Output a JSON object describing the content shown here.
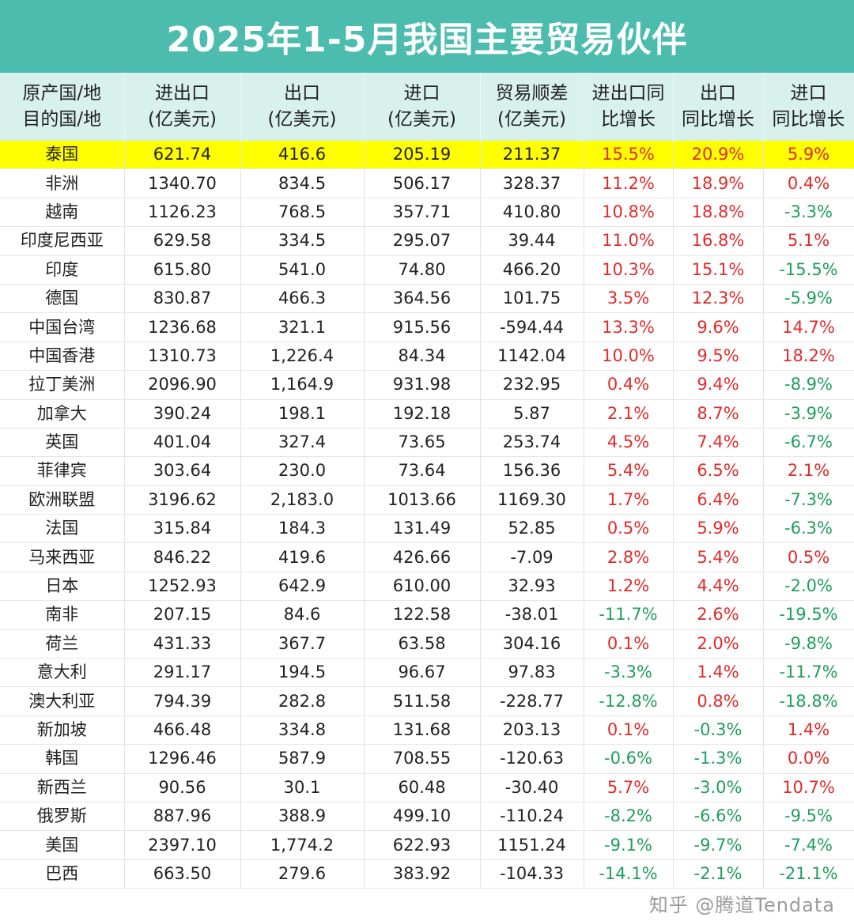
{
  "title": "2025年1-5月我国主要贸易伙伴",
  "headers": [
    [
      "原产国/地",
      "目的国/地"
    ],
    [
      "进出口",
      "(亿美元)"
    ],
    [
      "出口",
      "(亿美元)"
    ],
    [
      "进口",
      "(亿美元)"
    ],
    [
      "贸易顺差",
      "(亿美元)"
    ],
    [
      "进出口同",
      "比增长"
    ],
    [
      "出口",
      "同比增长"
    ],
    [
      "进口",
      "同比增长"
    ]
  ],
  "highlight_color": "#ffff00",
  "positive_color": "#e02a2a",
  "negative_color": "#1f9e5e",
  "rows": [
    [
      "泰国",
      "621.74",
      "416.6",
      "205.19",
      "211.37",
      "15.5%",
      "20.9%",
      "5.9%"
    ],
    [
      "非洲",
      "1340.70",
      "834.5",
      "506.17",
      "328.37",
      "11.2%",
      "18.9%",
      "0.4%"
    ],
    [
      "越南",
      "1126.23",
      "768.5",
      "357.71",
      "410.80",
      "10.8%",
      "18.8%",
      "-3.3%"
    ],
    [
      "印度尼西亚",
      "629.58",
      "334.5",
      "295.07",
      "39.44",
      "11.0%",
      "16.8%",
      "5.1%"
    ],
    [
      "印度",
      "615.80",
      "541.0",
      "74.80",
      "466.20",
      "10.3%",
      "15.1%",
      "-15.5%"
    ],
    [
      "德国",
      "830.87",
      "466.3",
      "364.56",
      "101.75",
      "3.5%",
      "12.3%",
      "-5.9%"
    ],
    [
      "中国台湾",
      "1236.68",
      "321.1",
      "915.56",
      "-594.44",
      "13.3%",
      "9.6%",
      "14.7%"
    ],
    [
      "中国香港",
      "1310.73",
      "1,226.4",
      "84.34",
      "1142.04",
      "10.0%",
      "9.5%",
      "18.2%"
    ],
    [
      "拉丁美洲",
      "2096.90",
      "1,164.9",
      "931.98",
      "232.95",
      "0.4%",
      "9.4%",
      "-8.9%"
    ],
    [
      "加拿大",
      "390.24",
      "198.1",
      "192.18",
      "5.87",
      "2.1%",
      "8.7%",
      "-3.9%"
    ],
    [
      "英国",
      "401.04",
      "327.4",
      "73.65",
      "253.74",
      "4.5%",
      "7.4%",
      "-6.7%"
    ],
    [
      "菲律宾",
      "303.64",
      "230.0",
      "73.64",
      "156.36",
      "5.4%",
      "6.5%",
      "2.1%"
    ],
    [
      "欧洲联盟",
      "3196.62",
      "2,183.0",
      "1013.66",
      "1169.30",
      "1.7%",
      "6.4%",
      "-7.3%"
    ],
    [
      "法国",
      "315.84",
      "184.3",
      "131.49",
      "52.85",
      "0.5%",
      "5.9%",
      "-6.3%"
    ],
    [
      "马来西亚",
      "846.22",
      "419.6",
      "426.66",
      "-7.09",
      "2.8%",
      "5.4%",
      "0.5%"
    ],
    [
      "日本",
      "1252.93",
      "642.9",
      "610.00",
      "32.93",
      "1.2%",
      "4.4%",
      "-2.0%"
    ],
    [
      "南非",
      "207.15",
      "84.6",
      "122.58",
      "-38.01",
      "-11.7%",
      "2.6%",
      "-19.5%"
    ],
    [
      "荷兰",
      "431.33",
      "367.7",
      "63.58",
      "304.16",
      "0.1%",
      "2.0%",
      "-9.8%"
    ],
    [
      "意大利",
      "291.17",
      "194.5",
      "96.67",
      "97.83",
      "-3.3%",
      "1.4%",
      "-11.7%"
    ],
    [
      "澳大利亚",
      "794.39",
      "282.8",
      "511.58",
      "-228.77",
      "-12.8%",
      "0.8%",
      "-18.8%"
    ],
    [
      "新加坡",
      "466.48",
      "334.8",
      "131.68",
      "203.13",
      "0.1%",
      "-0.3%",
      "1.4%"
    ],
    [
      "韩国",
      "1296.46",
      "587.9",
      "708.55",
      "-120.63",
      "-0.6%",
      "-1.3%",
      "0.0%"
    ],
    [
      "新西兰",
      "90.56",
      "30.1",
      "60.48",
      "-30.40",
      "5.7%",
      "-3.0%",
      "10.7%"
    ],
    [
      "俄罗斯",
      "887.96",
      "388.9",
      "499.10",
      "-110.24",
      "-8.2%",
      "-6.6%",
      "-9.5%"
    ],
    [
      "美国",
      "2397.10",
      "1,774.2",
      "622.93",
      "1151.24",
      "-9.1%",
      "-9.7%",
      "-7.4%"
    ],
    [
      "巴西",
      "663.50",
      "279.6",
      "383.92",
      "-104.33",
      "-14.1%",
      "-2.1%",
      "-21.1%"
    ]
  ],
  "watermark": "知乎 @腾道Tendata"
}
